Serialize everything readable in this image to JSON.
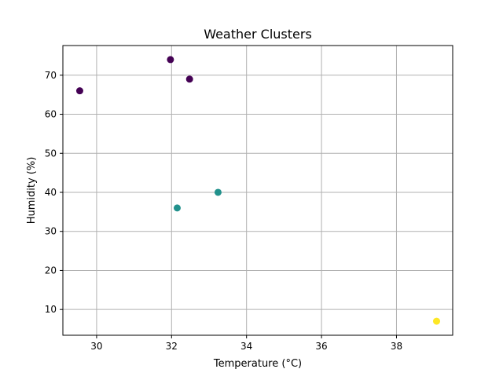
{
  "chart_data": {
    "type": "scatter",
    "title": "Weather Clusters",
    "xlabel": "Temperature (°C)",
    "ylabel": "Humidity (%)",
    "xlim": [
      29.1,
      39.5
    ],
    "ylim": [
      3.4,
      77.6
    ],
    "grid": true,
    "x_ticks": [
      30,
      32,
      34,
      36,
      38
    ],
    "y_ticks": [
      10,
      20,
      30,
      40,
      50,
      60,
      70
    ],
    "points": [
      {
        "x": 29.55,
        "y": 66,
        "cluster": 0
      },
      {
        "x": 31.97,
        "y": 74,
        "cluster": 0
      },
      {
        "x": 32.48,
        "y": 69,
        "cluster": 0
      },
      {
        "x": 32.15,
        "y": 36,
        "cluster": 1
      },
      {
        "x": 33.24,
        "y": 40,
        "cluster": 1
      },
      {
        "x": 39.07,
        "y": 7,
        "cluster": 2
      }
    ],
    "cluster_colors": [
      "#440154",
      "#21918c",
      "#fde725"
    ]
  }
}
